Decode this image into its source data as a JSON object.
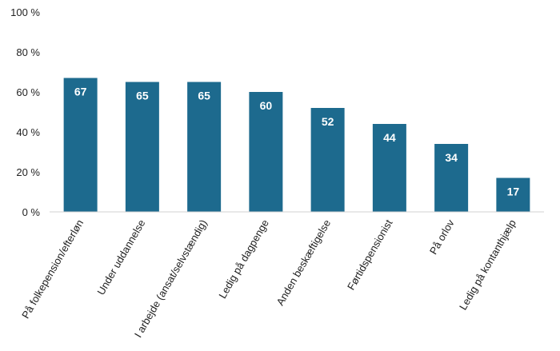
{
  "chart_data": {
    "type": "bar",
    "categories": [
      "På folkepension/efterløn",
      "Under uddannelse",
      "I arbejde (ansat/selvstændig)",
      "Ledig på dagpenge",
      "Anden beskæftigelse",
      "Førtidspensionist",
      "På orlov",
      "Ledig på kontanthjælp"
    ],
    "values": [
      67,
      65,
      65,
      60,
      52,
      44,
      34,
      17
    ],
    "color": "#1d6a8e",
    "ylim": [
      0,
      100
    ],
    "yticks": [
      {
        "value": 0,
        "label": "0 %"
      },
      {
        "value": 20,
        "label": "20 %"
      },
      {
        "value": 40,
        "label": "40 %"
      },
      {
        "value": 60,
        "label": "60 %"
      },
      {
        "value": 80,
        "label": "80 %"
      },
      {
        "value": 100,
        "label": "100 %"
      }
    ],
    "grid": false
  }
}
